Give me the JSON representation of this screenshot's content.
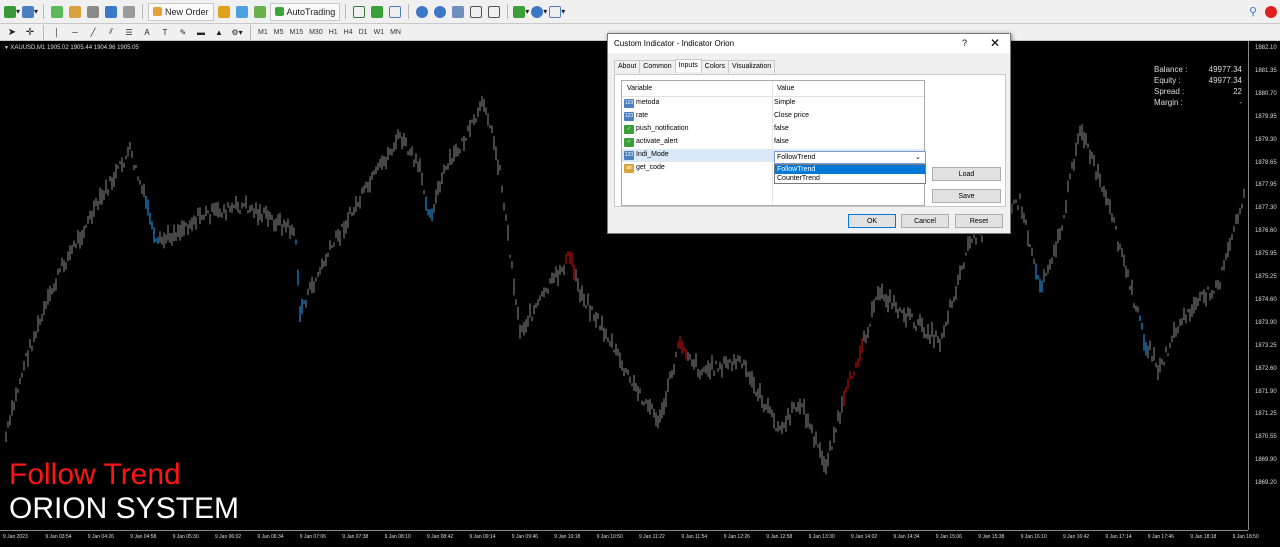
{
  "toolbar": {
    "new_order_label": "New Order",
    "autotrading_label": "AutoTrading",
    "timeframes": [
      "M1",
      "M5",
      "M15",
      "M30",
      "H1",
      "H4",
      "D1",
      "W1",
      "MN"
    ]
  },
  "chart": {
    "symbol_info": "XAUUSD,M1  1905.02 1905.44 1904.96 1905.05",
    "trend_label": "Follow Trend",
    "system_label": "ORION SYSTEM",
    "colors": {
      "background": "#000000",
      "candle": "#8c8c8c",
      "bull_signal": "#2aa7ff",
      "bear_signal": "#e01010"
    },
    "price_ticks": [
      "1882.10",
      "1881.35",
      "1880.70",
      "1879.95",
      "1879.30",
      "1878.65",
      "1877.95",
      "1877.30",
      "1876.60",
      "1875.95",
      "1875.25",
      "1874.60",
      "1873.90",
      "1873.25",
      "1872.60",
      "1871.90",
      "1871.25",
      "1870.55",
      "1869.90",
      "1869.20"
    ],
    "time_ticks": [
      "9 Jan 2023",
      "9 Jan 03:54",
      "9 Jan 04:26",
      "9 Jan 04:58",
      "9 Jan 05:30",
      "9 Jan 06:02",
      "9 Jan 06:34",
      "9 Jan 07:06",
      "9 Jan 07:38",
      "9 Jan 08:10",
      "9 Jan 08:42",
      "9 Jan 09:14",
      "9 Jan 09:46",
      "9 Jan 10:18",
      "9 Jan 10:50",
      "9 Jan 11:22",
      "9 Jan 11:54",
      "9 Jan 12:26",
      "9 Jan 12:58",
      "9 Jan 13:30",
      "9 Jan 14:02",
      "9 Jan 14:34",
      "9 Jan 15:06",
      "9 Jan 15:38",
      "9 Jan 16:10",
      "9 Jan 16:42",
      "9 Jan 17:14",
      "9 Jan 17:46",
      "9 Jan 18:18",
      "9 Jan 18:50"
    ]
  },
  "account": {
    "balance_label": "Balance :",
    "balance_value": "49977.34",
    "equity_label": "Equity :",
    "equity_value": "49977.34",
    "spread_label": "Spread :",
    "spread_value": "22",
    "margin_label": "Margin :",
    "margin_value": "-"
  },
  "dialog": {
    "title": "Custom Indicator - Indicator Orion",
    "help": "?",
    "close": "✕",
    "tabs": [
      "About",
      "Common",
      "Inputs",
      "Colors",
      "Visualization"
    ],
    "col_variable": "Variable",
    "col_value": "Value",
    "rows": [
      {
        "icon": "123",
        "variable": "metoda",
        "value": "Simple"
      },
      {
        "icon": "123",
        "variable": "rate",
        "value": "Close price"
      },
      {
        "icon": "bool",
        "variable": "push_notification",
        "value": "false"
      },
      {
        "icon": "bool",
        "variable": "activate_alert",
        "value": "false"
      },
      {
        "icon": "123",
        "variable": "Indi_Mode",
        "value": "FollowTrend"
      },
      {
        "icon": "ab",
        "variable": "get_code",
        "value": ""
      }
    ],
    "dropdown_options": [
      "FollowTrend",
      "CounterTrend"
    ],
    "load_label": "Load",
    "save_label": "Save",
    "ok_label": "OK",
    "cancel_label": "Cancel",
    "reset_label": "Reset"
  }
}
